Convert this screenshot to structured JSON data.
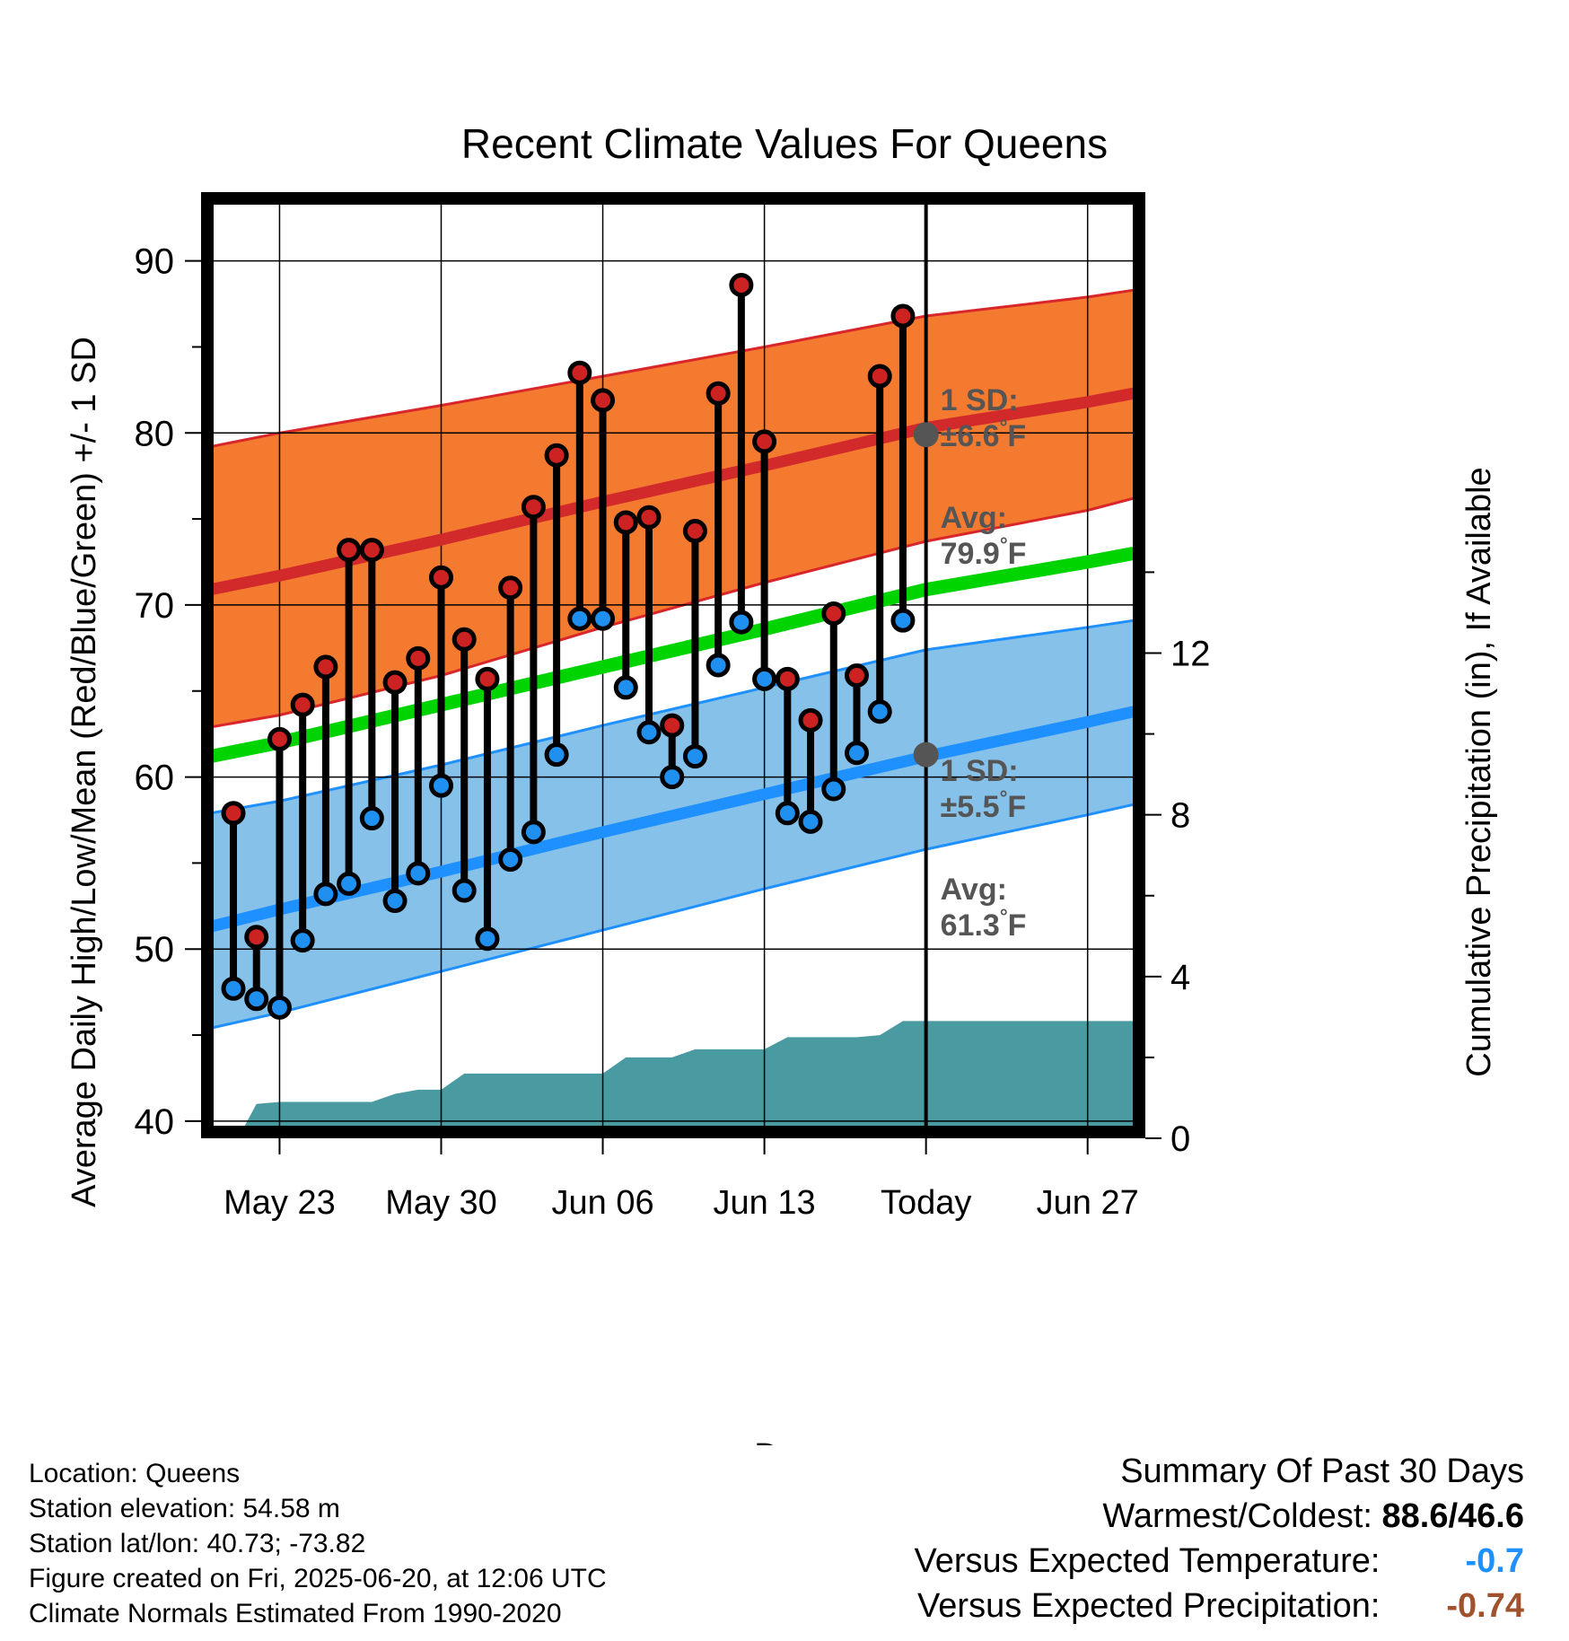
{
  "chart_data": {
    "type": "line",
    "title": "Recent Climate Values For Queens",
    "xlabel": "Day",
    "ylabel": "Average Daily High/Low/Mean (Red/Blue/Green) +/- 1 SD",
    "ylabel_right": "Cumulative Precipitation (in), If Available",
    "ylim": [
      39,
      94
    ],
    "ylim_right": [
      0,
      23.4
    ],
    "yticks": [
      40,
      50,
      60,
      70,
      80,
      90
    ],
    "yticks_right": [
      0,
      4,
      8,
      12
    ],
    "xlim": [
      -3.4,
      37.5
    ],
    "xticks": [
      {
        "day": 0,
        "label": "May 23"
      },
      {
        "day": 7,
        "label": "May 30"
      },
      {
        "day": 14,
        "label": "Jun 06"
      },
      {
        "day": 21,
        "label": "Jun 13"
      },
      {
        "day": 28,
        "label": "Today"
      },
      {
        "day": 35,
        "label": "Jun 27"
      }
    ],
    "today_day": 28,
    "high_band": {
      "x": [
        -3,
        0,
        7,
        14,
        21,
        28,
        35,
        37
      ],
      "upper": [
        79.2,
        80.0,
        81.6,
        83.3,
        85.0,
        86.8,
        87.9,
        88.3
      ],
      "mean": [
        70.9,
        71.7,
        73.8,
        76.0,
        78.1,
        80.3,
        81.8,
        82.3
      ],
      "lower": [
        62.9,
        63.6,
        65.9,
        68.7,
        71.3,
        73.7,
        75.5,
        76.2
      ]
    },
    "low_band": {
      "x": [
        -3,
        0,
        7,
        14,
        21,
        28,
        35,
        37
      ],
      "upper": [
        57.9,
        58.6,
        60.7,
        63.0,
        65.2,
        67.4,
        68.7,
        69.1
      ],
      "mean": [
        51.3,
        52.3,
        54.5,
        56.8,
        59.0,
        61.2,
        63.2,
        63.8
      ],
      "lower": [
        45.4,
        46.3,
        48.7,
        51.1,
        53.5,
        55.8,
        57.8,
        58.4
      ]
    },
    "mean_line": {
      "x": [
        -3,
        0,
        7,
        14,
        21,
        28,
        35,
        37
      ],
      "values": [
        61.2,
        62.0,
        64.2,
        66.4,
        68.6,
        70.9,
        72.5,
        73.0
      ]
    },
    "daily": {
      "day": [
        -2,
        -1,
        0,
        1,
        2,
        3,
        4,
        5,
        6,
        7,
        8,
        9,
        10,
        11,
        12,
        13,
        14,
        15,
        16,
        17,
        18,
        19,
        20,
        21,
        22,
        23,
        24,
        25,
        26,
        27
      ],
      "high": [
        57.9,
        50.7,
        62.2,
        64.2,
        66.4,
        73.2,
        73.2,
        65.5,
        66.9,
        71.6,
        68.0,
        65.7,
        71.0,
        75.7,
        78.7,
        83.5,
        81.9,
        74.8,
        75.1,
        63.0,
        74.3,
        82.3,
        88.6,
        79.5,
        65.7,
        63.3,
        69.5,
        65.9,
        83.3,
        86.8
      ],
      "low": [
        47.7,
        47.1,
        46.6,
        50.5,
        53.2,
        53.8,
        57.6,
        52.8,
        54.4,
        59.5,
        53.4,
        50.6,
        55.2,
        56.8,
        61.3,
        69.2,
        69.2,
        65.2,
        62.6,
        60.0,
        61.2,
        66.5,
        69.0,
        65.7,
        57.9,
        57.4,
        59.3,
        61.4,
        63.8,
        69.1
      ]
    },
    "precip": {
      "day": [
        -1.8,
        -1,
        0,
        1,
        2,
        3,
        4,
        5,
        6,
        7,
        8,
        9,
        10,
        11,
        12,
        13,
        14,
        15,
        16,
        17,
        18,
        19,
        20,
        21,
        22,
        23,
        24,
        25,
        26,
        27,
        28,
        37
      ],
      "values": [
        0,
        0.85,
        0.9,
        0.9,
        0.9,
        0.9,
        0.9,
        1.1,
        1.2,
        1.2,
        1.6,
        1.6,
        1.6,
        1.6,
        1.6,
        1.6,
        1.6,
        2.0,
        2.0,
        2.0,
        2.2,
        2.2,
        2.2,
        2.2,
        2.5,
        2.5,
        2.5,
        2.5,
        2.55,
        2.9,
        2.9,
        2.9
      ]
    },
    "annotations": {
      "high_sd": [
        "1 SD:",
        "±6.6",
        "°F"
      ],
      "high_avg": [
        "Avg:",
        "79.9",
        "°F"
      ],
      "low_sd": [
        "1 SD:",
        "±5.5",
        "°F"
      ],
      "low_avg": [
        "Avg:",
        "61.3",
        "°F"
      ],
      "precip_days": [
        "30",
        "Days"
      ]
    },
    "colors": {
      "high_band": "#f47a30",
      "high_edge": "#d9262a",
      "high_mean": "#d22a2a",
      "low_band": "#85c1e9",
      "low_edge": "#1e90ff",
      "low_mean": "#1e90ff",
      "mean_line": "#00d400",
      "precip": "#4a9aa2",
      "high_dot": "#cc2222",
      "low_dot": "#2090f0",
      "annotation": "#555555",
      "marker": "#555555"
    }
  },
  "footer": {
    "location": "Location: Queens",
    "elevation": "Station elevation: 54.58 m",
    "latlon": "Station lat/lon: 40.73; -73.82",
    "created": "Figure created on Fri, 2025-06-20, at 12:06 UTC",
    "normals": "Climate Normals Estimated From 1990-2020"
  },
  "summary": {
    "title": "Summary Of Past 30 Days",
    "warm_cold_label": "Warmest/Coldest:",
    "warm_cold_value": "88.6/46.6",
    "temp_label": "Versus Expected Temperature:",
    "temp_value": "-0.7",
    "temp_color": "#1e90ff",
    "precip_label": "Versus Expected Precipitation:",
    "precip_value": "-0.74",
    "precip_color": "#a0522d"
  }
}
